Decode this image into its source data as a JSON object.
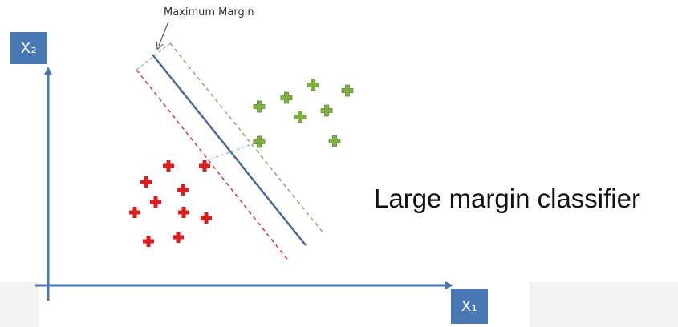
{
  "labels": {
    "y_axis": "X₂",
    "x_axis": "X₁",
    "margin_annotation": "Maximum Margin",
    "caption": "Large margin classifier"
  },
  "colors": {
    "axis": "#4a78b5",
    "decision_boundary": "#4a6a9a",
    "positive_margin": "#9aa56a",
    "negative_margin": "#e0343c",
    "positive_class": "#7db13f",
    "negative_class": "#e01b1b",
    "margin_width_marker": "#8fb0d6"
  },
  "icons": {
    "positive_marker": "plus-cross",
    "negative_marker": "plus-cross"
  }
}
